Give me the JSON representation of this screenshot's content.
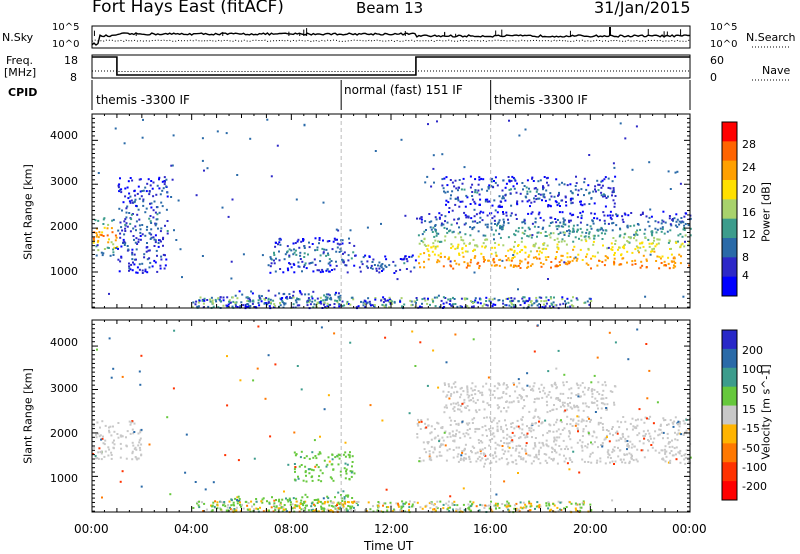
{
  "header": {
    "title": "Fort Hays East (fitACF)",
    "beam": "Beam 13",
    "date": "31/Jan/2015"
  },
  "summary": {
    "nsky_label": "N.Sky",
    "nsearch_label": "N.Search",
    "nsky_ticks": [
      "10^5",
      "10^0"
    ],
    "nsearch_ticks": [
      "10^5",
      "10^0"
    ],
    "freq_label_1": "Freq.",
    "freq_label_2": "[MHz]",
    "freq_ticks": [
      "18",
      "8"
    ],
    "nave_label": "Nave",
    "nave_ticks": [
      "60",
      "0"
    ],
    "cpid_label": "CPID",
    "cpid_segments": [
      {
        "label": "themis -3300 IF",
        "start": 0,
        "end": 10
      },
      {
        "label": "normal (fast) 151 IF",
        "start": 10,
        "end": 16
      },
      {
        "label": "themis -3300 IF",
        "start": 16,
        "end": 24
      }
    ]
  },
  "chart_data": [
    {
      "type": "heatmap",
      "name": "power",
      "ylabel": "Slant Range [km]",
      "ylim": [
        180,
        4600
      ],
      "yticks": [
        1000,
        2000,
        3000,
        4000
      ],
      "xlim": [
        0,
        24
      ],
      "colorbar": {
        "label": "Power [dB]",
        "ticks": [
          "28",
          "24",
          "20",
          "16",
          "12",
          "8",
          "4"
        ],
        "colors": [
          "#ff0000",
          "#ff6400",
          "#ffa000",
          "#ffe000",
          "#a8d26c",
          "#3c9c8c",
          "#2a6aa8",
          "#2d28c8",
          "#0000ff"
        ]
      },
      "echo_regions": [
        {
          "t": [
            0.0,
            1.0
          ],
          "r": [
            1400,
            2300
          ],
          "power_db": 28
        },
        {
          "t": [
            1.0,
            3.0
          ],
          "r": [
            1000,
            3200
          ],
          "power_db": 8
        },
        {
          "t": [
            5.5,
            10.0
          ],
          "r": [
            200,
            600
          ],
          "power_db": 10
        },
        {
          "t": [
            7.0,
            10.5
          ],
          "r": [
            1000,
            1800
          ],
          "power_db": 10
        },
        {
          "t": [
            10.5,
            13.0
          ],
          "r": [
            1000,
            1400
          ],
          "power_db": 8
        },
        {
          "t": [
            13.0,
            24.0
          ],
          "r": [
            1100,
            2400
          ],
          "power_db": 24
        },
        {
          "t": [
            14.0,
            21.0
          ],
          "r": [
            2500,
            3200
          ],
          "power_db": 8
        }
      ]
    },
    {
      "type": "heatmap",
      "name": "velocity",
      "ylabel": "Slant Range [km]",
      "ylim": [
        180,
        4600
      ],
      "yticks": [
        1000,
        2000,
        3000,
        4000
      ],
      "xlabel": "Time UT",
      "xlim": [
        0,
        24
      ],
      "xticks": [
        "00:00",
        "04:00",
        "08:00",
        "12:00",
        "16:00",
        "20:00",
        "00:00"
      ],
      "colorbar": {
        "label": "Velocity [m s^-1]",
        "ticks": [
          "200",
          "100",
          "50",
          "15",
          "-15",
          "-50",
          "-100",
          "-200"
        ],
        "colors": [
          "#2828c8",
          "#2a6aa8",
          "#3c9c8c",
          "#66c83c",
          "#c8c8c8",
          "#ffb400",
          "#ff7800",
          "#ff3200",
          "#ff0000"
        ]
      },
      "echo_regions": [
        {
          "t": [
            0.0,
            2.0
          ],
          "r": [
            1400,
            2300
          ],
          "velocity": 0
        },
        {
          "t": [
            5.5,
            10.5
          ],
          "r": [
            200,
            600
          ],
          "velocity": 40
        },
        {
          "t": [
            8.0,
            10.5
          ],
          "r": [
            900,
            1600
          ],
          "velocity": 40
        },
        {
          "t": [
            13.0,
            24.0
          ],
          "r": [
            1300,
            2400
          ],
          "velocity": 0
        },
        {
          "t": [
            14.0,
            21.0
          ],
          "r": [
            2500,
            3200
          ],
          "velocity": 0
        }
      ]
    }
  ]
}
